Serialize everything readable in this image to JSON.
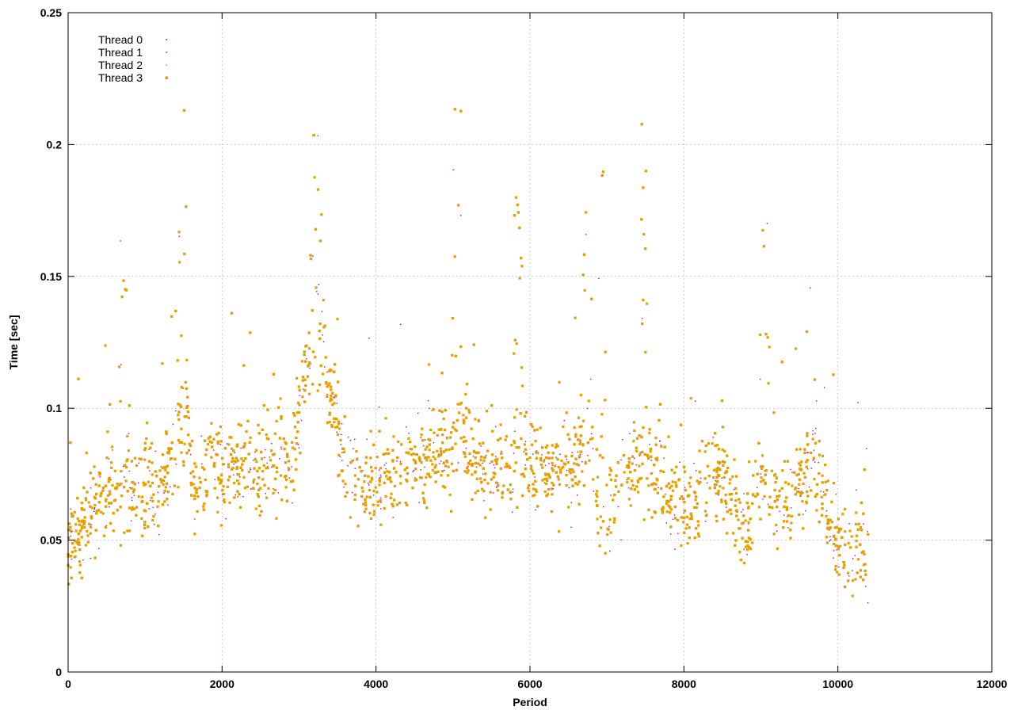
{
  "chart_data": {
    "type": "scatter",
    "xlabel": "Period",
    "ylabel": "Time [sec]",
    "xlim": [
      0,
      12000
    ],
    "ylim": [
      0,
      0.25
    ],
    "x_ticks": [
      "0",
      "2000",
      "4000",
      "6000",
      "8000",
      "10000",
      "12000"
    ],
    "y_ticks": [
      "0",
      "0.05",
      "0.1",
      "0.15",
      "0.2",
      "0.25"
    ],
    "x_tick_values": [
      0,
      2000,
      4000,
      6000,
      8000,
      10000,
      12000
    ],
    "y_tick_values": [
      0,
      0.05,
      0.1,
      0.15,
      0.2,
      0.25
    ],
    "grid": true,
    "legend_position": "top-left",
    "x_max_data": 10400,
    "series": [
      {
        "name": "Thread 0",
        "color": "#9400d3",
        "marker": "dot"
      },
      {
        "name": "Thread 1",
        "color": "#009e73",
        "marker": "dot"
      },
      {
        "name": "Thread 2",
        "color": "#56b4e9",
        "marker": "dot"
      },
      {
        "name": "Thread 3",
        "color": "#e69f00",
        "marker": "square"
      }
    ],
    "trend": [
      [
        0,
        0.045
      ],
      [
        300,
        0.06
      ],
      [
        600,
        0.07
      ],
      [
        800,
        0.068
      ],
      [
        1000,
        0.072
      ],
      [
        1200,
        0.068
      ],
      [
        1400,
        0.085
      ],
      [
        1550,
        0.095
      ],
      [
        1650,
        0.075
      ],
      [
        2000,
        0.075
      ],
      [
        2500,
        0.078
      ],
      [
        2900,
        0.08
      ],
      [
        3100,
        0.115
      ],
      [
        3300,
        0.12
      ],
      [
        3450,
        0.1
      ],
      [
        3600,
        0.075
      ],
      [
        4000,
        0.072
      ],
      [
        4500,
        0.078
      ],
      [
        5000,
        0.085
      ],
      [
        5100,
        0.09
      ],
      [
        5300,
        0.078
      ],
      [
        6000,
        0.078
      ],
      [
        6600,
        0.08
      ],
      [
        6800,
        0.085
      ],
      [
        6900,
        0.06
      ],
      [
        7100,
        0.065
      ],
      [
        7300,
        0.078
      ],
      [
        7600,
        0.075
      ],
      [
        8000,
        0.06
      ],
      [
        8400,
        0.075
      ],
      [
        8800,
        0.055
      ],
      [
        9000,
        0.07
      ],
      [
        9400,
        0.065
      ],
      [
        9700,
        0.085
      ],
      [
        9900,
        0.055
      ],
      [
        10100,
        0.045
      ],
      [
        10400,
        0.048
      ]
    ],
    "peaks": [
      {
        "x": 700,
        "y": 0.165
      },
      {
        "x": 1480,
        "y": 0.218
      },
      {
        "x": 3200,
        "y": 0.21
      },
      {
        "x": 3300,
        "y": 0.185
      },
      {
        "x": 5050,
        "y": 0.219
      },
      {
        "x": 5850,
        "y": 0.183
      },
      {
        "x": 6750,
        "y": 0.175
      },
      {
        "x": 6950,
        "y": 0.192
      },
      {
        "x": 7500,
        "y": 0.209
      },
      {
        "x": 9050,
        "y": 0.173
      }
    ]
  }
}
